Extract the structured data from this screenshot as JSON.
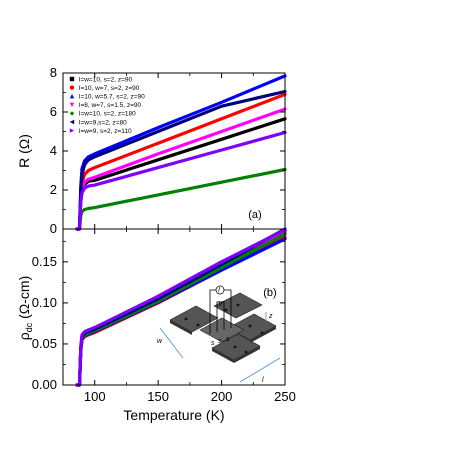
{
  "chart_data": [
    {
      "panel": "(a)",
      "type": "line",
      "xlabel": "",
      "ylabel": "R (Ω)",
      "xlim": [
        75,
        250
      ],
      "ylim": [
        0,
        8
      ],
      "xticks": [],
      "yticks": [
        0,
        2,
        4,
        6,
        8
      ],
      "legend_position": "top-left",
      "series": [
        {
          "name": "l=w=10, s=2, z=90",
          "color": "#000000",
          "marker": "square",
          "x": [
            86,
            88,
            89,
            90,
            92,
            95,
            100,
            150,
            200,
            250
          ],
          "y": [
            0,
            0,
            1.6,
            2.0,
            2.3,
            2.45,
            2.5,
            3.55,
            4.6,
            5.65
          ]
        },
        {
          "name": "l=10, w=7, s=2, z=90",
          "color": "#ff0000",
          "marker": "circle",
          "x": [
            86,
            88,
            89,
            90,
            92,
            95,
            100,
            150,
            200,
            250
          ],
          "y": [
            0,
            0,
            1.8,
            2.4,
            2.8,
            3.0,
            3.15,
            4.4,
            5.65,
            6.9
          ]
        },
        {
          "name": "l=10, w=5.7, s=2, z=90",
          "color": "#0000ff",
          "marker": "triangle-up",
          "x": [
            86,
            88,
            89,
            90,
            92,
            95,
            100,
            150,
            200,
            250
          ],
          "y": [
            0,
            0,
            2.2,
            3.1,
            3.5,
            3.7,
            3.85,
            5.2,
            6.5,
            7.85
          ]
        },
        {
          "name": "l=8, w=7, s=1.5, z=90",
          "color": "#ff00ff",
          "marker": "triangle-down",
          "x": [
            86,
            88,
            89,
            90,
            92,
            95,
            100,
            150,
            200,
            250
          ],
          "y": [
            0,
            0,
            1.6,
            2.1,
            2.4,
            2.55,
            2.65,
            3.85,
            5.0,
            6.15
          ]
        },
        {
          "name": "l=w=10, s=2, z=180",
          "color": "#008000",
          "marker": "diamond",
          "x": [
            86,
            88,
            89,
            90,
            92,
            95,
            100,
            150,
            200,
            250
          ],
          "y": [
            0,
            0,
            0.7,
            0.9,
            1.0,
            1.05,
            1.1,
            1.75,
            2.4,
            3.05
          ]
        },
        {
          "name": "l=w=9,s=2, z=80",
          "color": "#000080",
          "marker": "triangle-left",
          "x": [
            86,
            88,
            89,
            90,
            92,
            95,
            100,
            150,
            200,
            250
          ],
          "y": [
            0,
            0,
            2.0,
            2.8,
            3.3,
            3.55,
            3.7,
            5.0,
            6.3,
            7.05
          ]
        },
        {
          "name": "l=w=9, s=2, z=110",
          "color": "#8000ff",
          "marker": "triangle-right",
          "x": [
            86,
            88,
            89,
            90,
            92,
            95,
            100,
            150,
            200,
            250
          ],
          "y": [
            0,
            0,
            1.4,
            1.85,
            2.1,
            2.2,
            2.25,
            3.15,
            4.05,
            4.95
          ]
        }
      ]
    },
    {
      "panel": "(b)",
      "type": "line",
      "xlabel": "Temperature (K)",
      "ylabel": "ρdc (Ω-cm)",
      "xlim": [
        75,
        250
      ],
      "ylim": [
        0,
        0.19
      ],
      "xticks": [
        100,
        150,
        200,
        250
      ],
      "yticks": [
        "0.00",
        "0.05",
        "0.10",
        "0.15"
      ],
      "series": [
        {
          "color": "#000000",
          "x": [
            86,
            88,
            89,
            90,
            92,
            95,
            100,
            150,
            200,
            250
          ],
          "y": [
            0,
            0,
            0.045,
            0.058,
            0.062,
            0.064,
            0.067,
            0.104,
            0.146,
            0.188
          ]
        },
        {
          "color": "#ff0000",
          "x": [
            86,
            88,
            89,
            90,
            92,
            95,
            100,
            150,
            200,
            250
          ],
          "y": [
            0,
            0,
            0.042,
            0.055,
            0.059,
            0.061,
            0.064,
            0.1,
            0.14,
            0.18
          ]
        },
        {
          "color": "#0000ff",
          "x": [
            86,
            88,
            89,
            90,
            92,
            95,
            100,
            150,
            200,
            250
          ],
          "y": [
            0,
            0,
            0.042,
            0.056,
            0.06,
            0.062,
            0.065,
            0.101,
            0.14,
            0.178
          ]
        },
        {
          "color": "#ff00ff",
          "x": [
            86,
            88,
            89,
            90,
            92,
            95,
            100,
            150,
            200,
            250
          ],
          "y": [
            0,
            0,
            0.046,
            0.06,
            0.064,
            0.066,
            0.069,
            0.108,
            0.15,
            0.186
          ]
        },
        {
          "color": "#008000",
          "x": [
            86,
            88,
            89,
            90,
            92,
            95,
            100,
            150,
            200,
            250
          ],
          "y": [
            0,
            0,
            0.044,
            0.057,
            0.061,
            0.063,
            0.066,
            0.102,
            0.143,
            0.184
          ]
        },
        {
          "color": "#000080",
          "x": [
            86,
            88,
            89,
            90,
            92,
            95,
            100,
            150,
            200,
            250
          ],
          "y": [
            0,
            0,
            0.045,
            0.059,
            0.063,
            0.065,
            0.068,
            0.105,
            0.147,
            0.19
          ]
        },
        {
          "color": "#8000ff",
          "x": [
            86,
            88,
            89,
            90,
            92,
            95,
            100,
            150,
            200,
            250
          ],
          "y": [
            0,
            0,
            0.047,
            0.061,
            0.065,
            0.067,
            0.07,
            0.108,
            0.15,
            0.189
          ]
        }
      ]
    }
  ],
  "inset": {
    "labels": {
      "current": "I",
      "voltage": "V",
      "w": "w",
      "l": "l",
      "z": "z",
      "s1": "s",
      "s2": "s",
      "s3": "s"
    }
  }
}
